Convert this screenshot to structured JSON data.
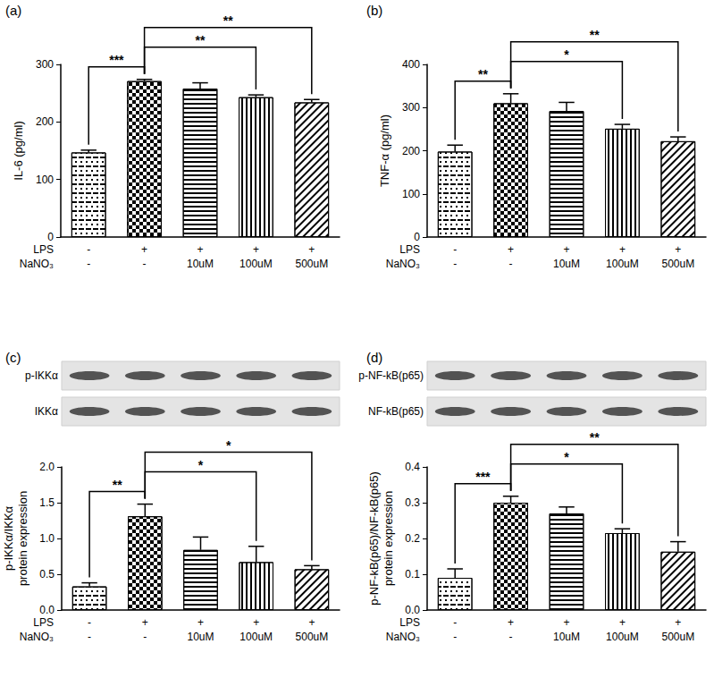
{
  "chart_data": [
    {
      "type": "bar",
      "panel": "(a)",
      "y_label": "IL-6 (pg/ml)",
      "category_rows": [
        "LPS",
        "NaNO₃"
      ],
      "categories": [
        [
          "-",
          "-"
        ],
        [
          "+",
          "-"
        ],
        [
          "+",
          "10uM"
        ],
        [
          "+",
          "100uM"
        ],
        [
          "+",
          "500uM"
        ]
      ],
      "values": [
        147,
        271,
        258,
        243,
        234
      ],
      "errors": [
        4,
        3,
        10,
        4,
        5
      ],
      "color": "#000000",
      "ylim": [
        0,
        300
      ],
      "yticks": [
        0,
        100,
        200,
        300
      ],
      "grid": false,
      "significance": [
        {
          "from": 0,
          "to": 1,
          "label": "***"
        },
        {
          "from": 1,
          "to": 3,
          "label": "**"
        },
        {
          "from": 1,
          "to": 4,
          "label": "**"
        }
      ]
    },
    {
      "type": "bar",
      "panel": "(b)",
      "y_label": "TNF-α (pg/ml)",
      "category_rows": [
        "LPS",
        "NaNO₃"
      ],
      "categories": [
        [
          "-",
          "-"
        ],
        [
          "+",
          "-"
        ],
        [
          "+",
          "10uM"
        ],
        [
          "+",
          "100uM"
        ],
        [
          "+",
          "500uM"
        ]
      ],
      "values": [
        198,
        310,
        292,
        251,
        222
      ],
      "errors": [
        15,
        22,
        20,
        10,
        10
      ],
      "color": "#000000",
      "ylim": [
        0,
        400
      ],
      "yticks": [
        0,
        100,
        200,
        300,
        400
      ],
      "grid": false,
      "significance": [
        {
          "from": 0,
          "to": 1,
          "label": "**"
        },
        {
          "from": 1,
          "to": 3,
          "label": "*"
        },
        {
          "from": 1,
          "to": 4,
          "label": "**"
        }
      ]
    },
    {
      "type": "bar",
      "panel": "(c)",
      "y_label": "p-IKKα/IKKα\nprotein expression",
      "blot": {
        "rows": [
          "p-IKKα",
          "IKKα"
        ]
      },
      "category_rows": [
        "LPS",
        "NaNO₃"
      ],
      "categories": [
        [
          "-",
          "-"
        ],
        [
          "+",
          "-"
        ],
        [
          "+",
          "10uM"
        ],
        [
          "+",
          "100uM"
        ],
        [
          "+",
          "500uM"
        ]
      ],
      "values": [
        0.33,
        1.31,
        0.84,
        0.67,
        0.57
      ],
      "errors": [
        0.05,
        0.17,
        0.18,
        0.22,
        0.05
      ],
      "color": "#000000",
      "ylim": [
        0,
        2
      ],
      "yticks": [
        {
          "value": 0,
          "label": "0.0"
        },
        {
          "value": 0.5,
          "label": "0.5"
        },
        {
          "value": 1,
          "label": "1.0"
        },
        {
          "value": 1.5,
          "label": "1.5"
        },
        {
          "value": 2,
          "label": "2.0"
        }
      ],
      "grid": false,
      "significance": [
        {
          "from": 0,
          "to": 1,
          "label": "**"
        },
        {
          "from": 1,
          "to": 3,
          "label": "*"
        },
        {
          "from": 1,
          "to": 4,
          "label": "*"
        }
      ]
    },
    {
      "type": "bar",
      "panel": "(d)",
      "y_label": "p-NF-kB(p65)/NF-kB(p65)\nprotein expression",
      "blot": {
        "rows": [
          "p-NF-kB(p65)",
          "NF-kB(p65)"
        ]
      },
      "category_rows": [
        "LPS",
        "NaNO₃"
      ],
      "categories": [
        [
          "-",
          "-"
        ],
        [
          "+",
          "-"
        ],
        [
          "+",
          "10uM"
        ],
        [
          "+",
          "100uM"
        ],
        [
          "+",
          "500uM"
        ]
      ],
      "values": [
        0.09,
        0.3,
        0.27,
        0.215,
        0.163
      ],
      "errors": [
        0.025,
        0.018,
        0.018,
        0.012,
        0.028
      ],
      "color": "#000000",
      "ylim": [
        0,
        0.4
      ],
      "yticks": [
        {
          "value": 0,
          "label": "0.0"
        },
        {
          "value": 0.1,
          "label": "0.1"
        },
        {
          "value": 0.2,
          "label": "0.2"
        },
        {
          "value": 0.3,
          "label": "0.3"
        },
        {
          "value": 0.4,
          "label": "0.4"
        }
      ],
      "grid": false,
      "significance": [
        {
          "from": 0,
          "to": 1,
          "label": "***"
        },
        {
          "from": 1,
          "to": 3,
          "label": "*"
        },
        {
          "from": 1,
          "to": 4,
          "label": "**"
        }
      ]
    }
  ]
}
